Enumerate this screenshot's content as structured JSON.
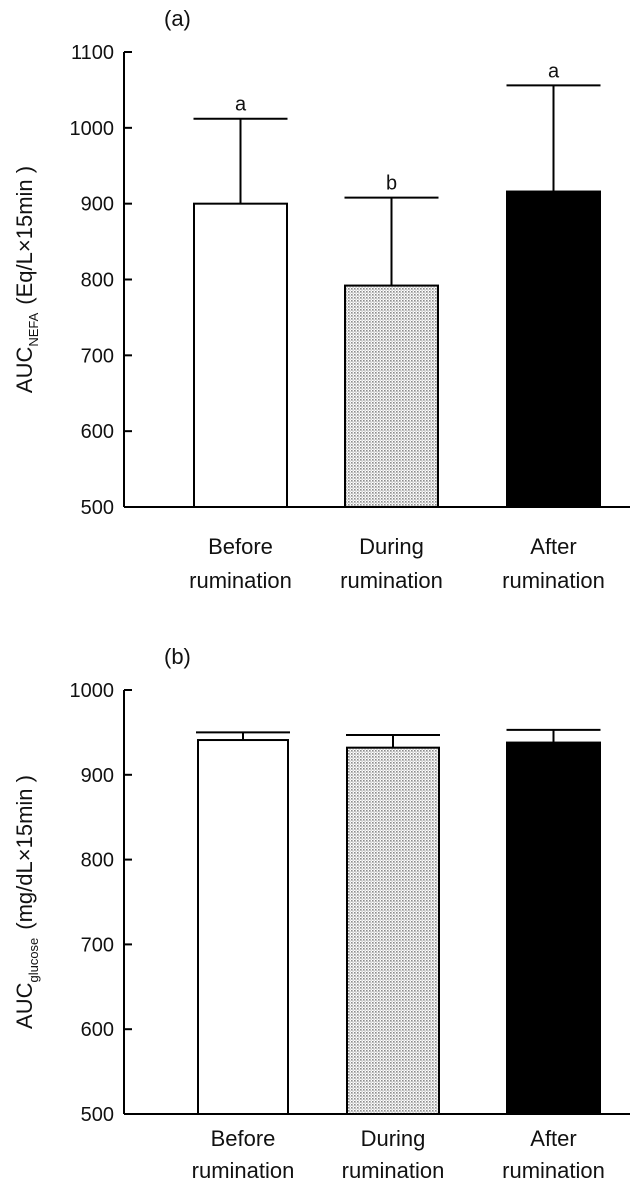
{
  "chart_data": [
    {
      "panel_label": "(a)",
      "type": "bar",
      "ylabel_main": "AUC",
      "ylabel_sub": "NEFA",
      "ylabel_unit": "(Eq/L×15min )",
      "ylim": [
        500,
        1100
      ],
      "yticks": [
        "500",
        "600",
        "700",
        "800",
        "900",
        "1000",
        "1100"
      ],
      "grid": false,
      "categories": [
        {
          "line1": "Before",
          "line2": "rumination"
        },
        {
          "line1": "During",
          "line2": "rumination"
        },
        {
          "line1": "After",
          "line2": "rumination"
        }
      ],
      "values": [
        900,
        792,
        916
      ],
      "errors": [
        112,
        116,
        140
      ],
      "significance": [
        "a",
        "b",
        "a"
      ],
      "fills": [
        "white",
        "dots",
        "black"
      ]
    },
    {
      "panel_label": "(b)",
      "type": "bar",
      "ylabel_main": "AUC",
      "ylabel_sub": "glucose",
      "ylabel_unit": "(mg/dL×15min )",
      "ylim": [
        500,
        1000
      ],
      "yticks": [
        "500",
        "600",
        "700",
        "800",
        "900",
        "1000"
      ],
      "grid": false,
      "categories": [
        {
          "line1": "Before",
          "line2": "rumination"
        },
        {
          "line1": "During",
          "line2": "rumination"
        },
        {
          "line1": "After",
          "line2": "rumination"
        }
      ],
      "values": [
        941,
        932,
        938
      ],
      "errors": [
        9,
        15,
        15
      ],
      "significance": [
        "",
        "",
        ""
      ],
      "fills": [
        "white",
        "dots",
        "black"
      ]
    }
  ],
  "colors": {
    "ink": "#000000",
    "dots": "#9a9a9a",
    "background": "#ffffff"
  }
}
